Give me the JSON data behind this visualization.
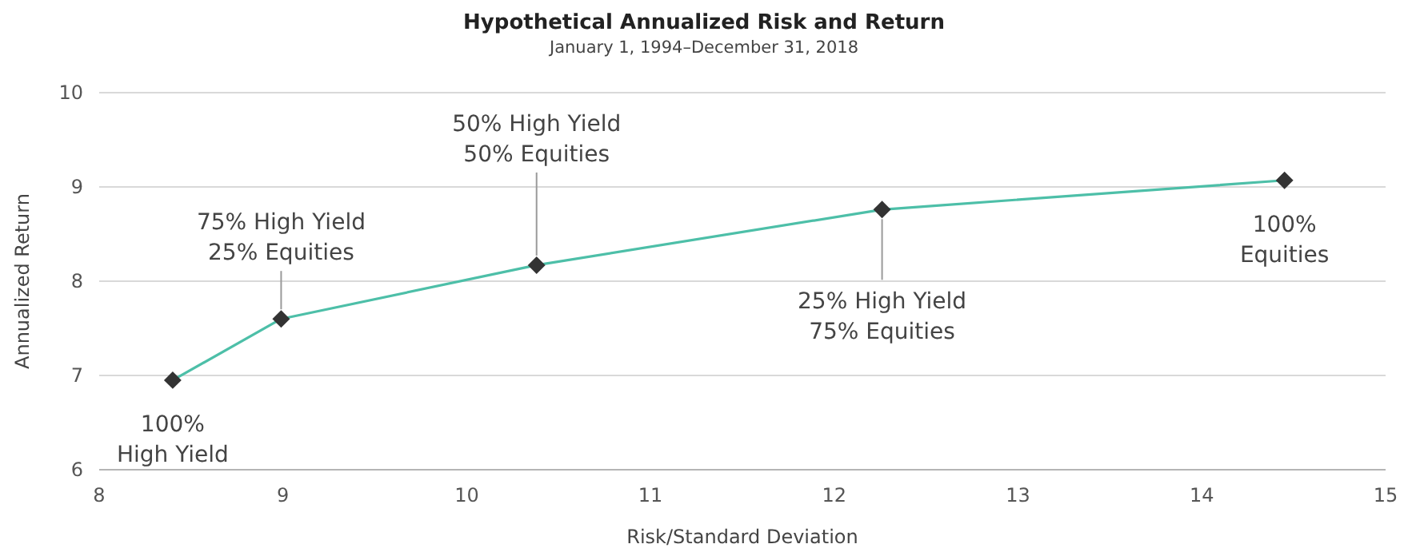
{
  "chart_data": {
    "type": "line",
    "title": "Hypothetical Annualized Risk and Return",
    "subtitle": "January 1, 1994–December 31, 2018",
    "xlabel": "Risk/Standard Deviation",
    "ylabel": "Annualized Return",
    "x": [
      8.4,
      8.99,
      10.38,
      12.26,
      14.45
    ],
    "series": [
      {
        "color": "#4dbfa8",
        "values": [
          6.95,
          7.6,
          8.17,
          8.76,
          9.07
        ]
      }
    ],
    "xlim": [
      8,
      15
    ],
    "xticks": [
      8,
      9,
      10,
      11,
      12,
      13,
      14,
      15
    ],
    "ylim": [
      6,
      10
    ],
    "yticks": [
      6,
      7,
      8,
      9,
      10
    ],
    "grid": "y",
    "marker": "diamond",
    "line_style": "solid",
    "annotations": [
      {
        "text": "100%\nHigh Yield",
        "x": 8.4,
        "y": 6.95
      },
      {
        "text": "75% High Yield\n25% Equities",
        "x": 8.99,
        "y": 7.6
      },
      {
        "text": "50% High Yield\n50% Equities",
        "x": 10.38,
        "y": 8.17
      },
      {
        "text": "25% High Yield\n75% Equities",
        "x": 12.26,
        "y": 8.76
      },
      {
        "text": "100%\nEquities",
        "x": 14.45,
        "y": 9.07
      }
    ]
  }
}
